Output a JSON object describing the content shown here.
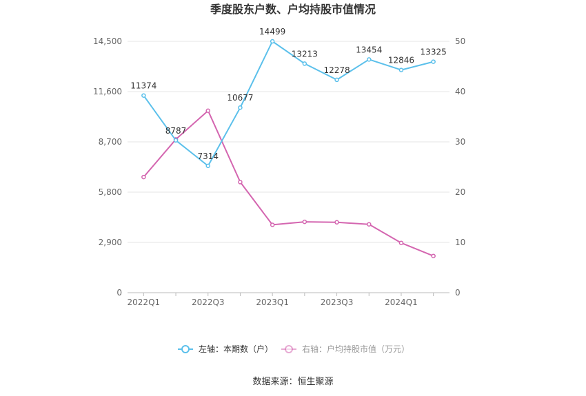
{
  "chart_data": {
    "type": "line",
    "title": "季度股东户数、户均持股市值情况",
    "x": [
      "2022Q1",
      "2022Q2",
      "2022Q3",
      "2022Q4",
      "2023Q1",
      "2023Q2",
      "2023Q3",
      "2023Q4",
      "2024Q1",
      "2024Q2"
    ],
    "x_tick_labels": [
      "2022Q1",
      "2022Q3",
      "2023Q1",
      "2023Q3",
      "2024Q1"
    ],
    "y_left": {
      "ticks": [
        "0",
        "2,900",
        "5,800",
        "8,700",
        "11,600",
        "14,500"
      ],
      "range": [
        0,
        14500
      ]
    },
    "y_right": {
      "ticks": [
        "0",
        "10",
        "20",
        "30",
        "40",
        "50"
      ],
      "range": [
        0,
        50
      ]
    },
    "series": [
      {
        "name": "左轴：本期数（户）",
        "axis": "left",
        "color": "#5bc0eb",
        "values": [
          11374,
          8787,
          7314,
          10677,
          14499,
          13213,
          12278,
          13454,
          12846,
          13325
        ],
        "labels": [
          "11374",
          "8787",
          "7314",
          "10677",
          "14499",
          "13213",
          "12278",
          "13454",
          "12846",
          "13325"
        ]
      },
      {
        "name": "右轴：户均持股市值（万元）",
        "axis": "right",
        "color": "#d466b0",
        "values": [
          23.0,
          30.5,
          36.2,
          22.0,
          13.5,
          14.1,
          14.0,
          13.6,
          9.9,
          7.3
        ]
      }
    ],
    "grid": true,
    "legend_position": "bottom"
  },
  "source": "数据来源：恒生聚源"
}
